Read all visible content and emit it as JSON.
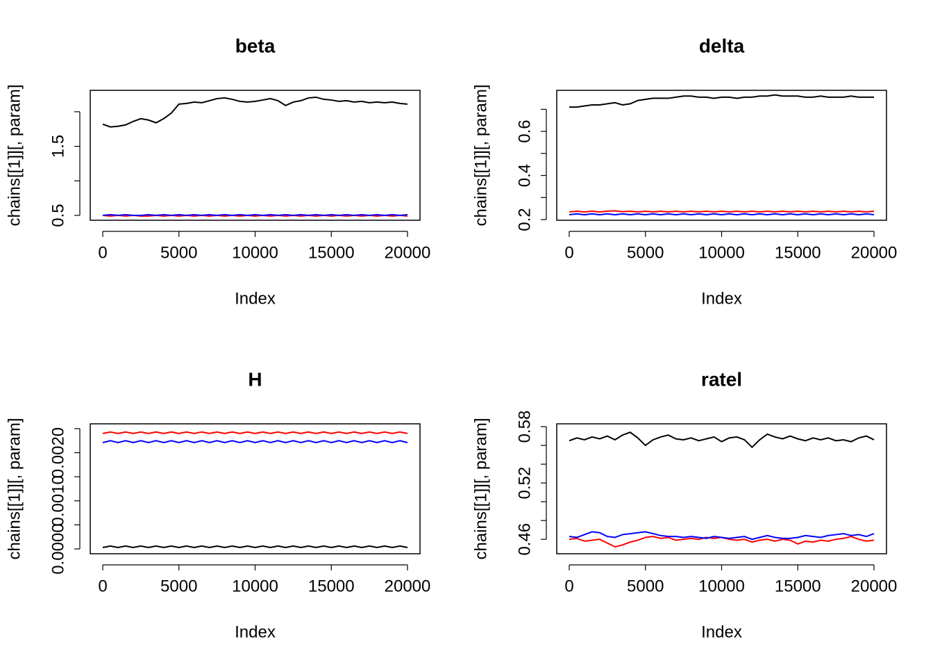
{
  "chart_data": [
    {
      "type": "line",
      "title": "beta",
      "xlabel": "Index",
      "ylabel": "chains[[1]][, param]",
      "x": [
        0,
        500,
        1000,
        1500,
        2000,
        2500,
        3000,
        3500,
        4000,
        4500,
        5000,
        5500,
        6000,
        6500,
        7000,
        7500,
        8000,
        8500,
        9000,
        9500,
        10000,
        10500,
        11000,
        11500,
        12000,
        12500,
        13000,
        13500,
        14000,
        14500,
        15000,
        15500,
        16000,
        16500,
        17000,
        17500,
        18000,
        18500,
        19000,
        19500,
        20000
      ],
      "series": [
        {
          "color": "#000000",
          "values": [
            1.82,
            1.78,
            1.79,
            1.81,
            1.86,
            1.9,
            1.88,
            1.84,
            1.9,
            1.98,
            2.11,
            2.12,
            2.14,
            2.13,
            2.16,
            2.19,
            2.2,
            2.18,
            2.15,
            2.14,
            2.15,
            2.17,
            2.19,
            2.16,
            2.09,
            2.14,
            2.16,
            2.2,
            2.21,
            2.18,
            2.17,
            2.15,
            2.16,
            2.14,
            2.15,
            2.13,
            2.14,
            2.13,
            2.14,
            2.12,
            2.11
          ]
        },
        {
          "color": "#ff0000",
          "values": [
            0.5,
            0.49,
            0.5,
            0.49,
            0.5,
            0.49,
            0.49,
            0.5,
            0.49,
            0.5,
            0.49,
            0.5,
            0.49,
            0.5,
            0.49,
            0.5,
            0.49,
            0.5,
            0.49,
            0.5,
            0.49,
            0.5,
            0.49,
            0.5,
            0.49,
            0.5,
            0.49,
            0.5,
            0.49,
            0.5,
            0.49,
            0.5,
            0.49,
            0.5,
            0.49,
            0.5,
            0.49,
            0.5,
            0.49,
            0.5,
            0.49
          ]
        },
        {
          "color": "#0000ff",
          "values": [
            0.5,
            0.51,
            0.5,
            0.51,
            0.5,
            0.5,
            0.51,
            0.5,
            0.51,
            0.5,
            0.51,
            0.5,
            0.51,
            0.5,
            0.51,
            0.5,
            0.51,
            0.5,
            0.51,
            0.5,
            0.51,
            0.5,
            0.51,
            0.5,
            0.51,
            0.5,
            0.51,
            0.5,
            0.51,
            0.5,
            0.51,
            0.5,
            0.51,
            0.5,
            0.51,
            0.5,
            0.51,
            0.5,
            0.51,
            0.5,
            0.51
          ]
        }
      ],
      "xlim": [
        -820,
        20820
      ],
      "ylim": [
        0.43,
        2.31
      ],
      "xticks": [
        0,
        5000,
        10000,
        15000,
        20000
      ],
      "yticks": [
        0.5,
        {
          "value": 1.0,
          "label": null
        },
        1.5,
        {
          "value": 2.0,
          "label": null
        }
      ]
    },
    {
      "type": "line",
      "title": "delta",
      "xlabel": "Index",
      "ylabel": "chains[[1]][, param]",
      "x": [
        0,
        500,
        1000,
        1500,
        2000,
        2500,
        3000,
        3500,
        4000,
        4500,
        5000,
        5500,
        6000,
        6500,
        7000,
        7500,
        8000,
        8500,
        9000,
        9500,
        10000,
        10500,
        11000,
        11500,
        12000,
        12500,
        13000,
        13500,
        14000,
        14500,
        15000,
        15500,
        16000,
        16500,
        17000,
        17500,
        18000,
        18500,
        19000,
        19500,
        20000
      ],
      "series": [
        {
          "color": "#000000",
          "values": [
            0.71,
            0.71,
            0.715,
            0.72,
            0.72,
            0.725,
            0.73,
            0.72,
            0.725,
            0.74,
            0.745,
            0.75,
            0.75,
            0.75,
            0.755,
            0.76,
            0.76,
            0.755,
            0.755,
            0.75,
            0.755,
            0.755,
            0.75,
            0.755,
            0.755,
            0.76,
            0.76,
            0.765,
            0.76,
            0.76,
            0.76,
            0.755,
            0.755,
            0.76,
            0.755,
            0.755,
            0.755,
            0.76,
            0.755,
            0.755,
            0.755
          ]
        },
        {
          "color": "#ff0000",
          "values": [
            0.235,
            0.238,
            0.235,
            0.238,
            0.235,
            0.238,
            0.24,
            0.236,
            0.238,
            0.235,
            0.238,
            0.235,
            0.238,
            0.235,
            0.238,
            0.235,
            0.238,
            0.235,
            0.238,
            0.235,
            0.238,
            0.235,
            0.238,
            0.235,
            0.238,
            0.235,
            0.238,
            0.235,
            0.238,
            0.235,
            0.238,
            0.235,
            0.238,
            0.235,
            0.238,
            0.235,
            0.238,
            0.235,
            0.238,
            0.235,
            0.238
          ]
        },
        {
          "color": "#0000ff",
          "values": [
            0.222,
            0.226,
            0.222,
            0.226,
            0.222,
            0.226,
            0.222,
            0.226,
            0.222,
            0.226,
            0.222,
            0.226,
            0.222,
            0.226,
            0.222,
            0.226,
            0.222,
            0.226,
            0.222,
            0.226,
            0.222,
            0.226,
            0.222,
            0.226,
            0.222,
            0.226,
            0.222,
            0.226,
            0.222,
            0.226,
            0.222,
            0.226,
            0.222,
            0.226,
            0.222,
            0.226,
            0.222,
            0.226,
            0.222,
            0.226,
            0.222
          ]
        }
      ],
      "xlim": [
        -820,
        20820
      ],
      "ylim": [
        0.197,
        0.786
      ],
      "xticks": [
        0,
        5000,
        10000,
        15000,
        20000
      ],
      "yticks": [
        0.2,
        {
          "value": 0.3,
          "label": null
        },
        0.4,
        {
          "value": 0.5,
          "label": null
        },
        0.6,
        {
          "value": 0.7,
          "label": null
        }
      ]
    },
    {
      "type": "line",
      "title": "H",
      "xlabel": "Index",
      "ylabel": "chains[[1]][, param]",
      "x": [
        0,
        500,
        1000,
        1500,
        2000,
        2500,
        3000,
        3500,
        4000,
        4500,
        5000,
        5500,
        6000,
        6500,
        7000,
        7500,
        8000,
        8500,
        9000,
        9500,
        10000,
        10500,
        11000,
        11500,
        12000,
        12500,
        13000,
        13500,
        14000,
        14500,
        15000,
        15500,
        16000,
        16500,
        17000,
        17500,
        18000,
        18500,
        19000,
        19500,
        20000
      ],
      "series": [
        {
          "color": "#000000",
          "values": [
            3e-05,
            6e-05,
            3e-05,
            6e-05,
            3e-05,
            6e-05,
            3e-05,
            6e-05,
            3e-05,
            6e-05,
            3e-05,
            6e-05,
            3e-05,
            6e-05,
            3e-05,
            6e-05,
            3e-05,
            6e-05,
            3e-05,
            6e-05,
            3e-05,
            6e-05,
            3e-05,
            6e-05,
            3e-05,
            6e-05,
            3e-05,
            6e-05,
            3e-05,
            6e-05,
            3e-05,
            6e-05,
            3e-05,
            6e-05,
            3e-05,
            6e-05,
            3e-05,
            6e-05,
            3e-05,
            6e-05,
            3e-05
          ]
        },
        {
          "color": "#ff0000",
          "values": [
            0.0024,
            0.00243,
            0.0024,
            0.00243,
            0.0024,
            0.00243,
            0.0024,
            0.00243,
            0.0024,
            0.00243,
            0.0024,
            0.00243,
            0.0024,
            0.00243,
            0.0024,
            0.00243,
            0.0024,
            0.00243,
            0.0024,
            0.00243,
            0.0024,
            0.00243,
            0.0024,
            0.00243,
            0.0024,
            0.00243,
            0.0024,
            0.00243,
            0.0024,
            0.00243,
            0.0024,
            0.00243,
            0.0024,
            0.00243,
            0.0024,
            0.00243,
            0.0024,
            0.00243,
            0.0024,
            0.00243,
            0.0024
          ]
        },
        {
          "color": "#0000ff",
          "values": [
            0.00221,
            0.00225,
            0.00221,
            0.00225,
            0.00221,
            0.00225,
            0.00221,
            0.00225,
            0.00221,
            0.00225,
            0.00221,
            0.00225,
            0.00221,
            0.00225,
            0.00221,
            0.00225,
            0.00221,
            0.00225,
            0.00221,
            0.00225,
            0.00221,
            0.00225,
            0.00221,
            0.00225,
            0.00221,
            0.00225,
            0.00221,
            0.00225,
            0.00221,
            0.00225,
            0.00221,
            0.00225,
            0.00221,
            0.00225,
            0.00221,
            0.00225,
            0.00221,
            0.00225,
            0.00221,
            0.00225,
            0.00221
          ]
        }
      ],
      "xlim": [
        -820,
        20820
      ],
      "ylim": [
        -0.0001,
        0.0026
      ],
      "xticks": [
        0,
        5000,
        10000,
        15000,
        20000
      ],
      "yticks": [
        {
          "value": 0,
          "label": "0.0000"
        },
        {
          "value": 0.0005,
          "label": null
        },
        {
          "value": 0.001,
          "label": "0.0010"
        },
        {
          "value": 0.0015,
          "label": null
        },
        {
          "value": 0.002,
          "label": "0.0020"
        },
        {
          "value": 0.0025,
          "label": null
        }
      ]
    },
    {
      "type": "line",
      "title": "ratel",
      "xlabel": "Index",
      "ylabel": "chains[[1]][, param]",
      "x": [
        0,
        500,
        1000,
        1500,
        2000,
        2500,
        3000,
        3500,
        4000,
        4500,
        5000,
        5500,
        6000,
        6500,
        7000,
        7500,
        8000,
        8500,
        9000,
        9500,
        10000,
        10500,
        11000,
        11500,
        12000,
        12500,
        13000,
        13500,
        14000,
        14500,
        15000,
        15500,
        16000,
        16500,
        17000,
        17500,
        18000,
        18500,
        19000,
        19500,
        20000
      ],
      "series": [
        {
          "color": "#000000",
          "values": [
            0.565,
            0.568,
            0.566,
            0.569,
            0.567,
            0.57,
            0.566,
            0.571,
            0.574,
            0.568,
            0.56,
            0.566,
            0.569,
            0.571,
            0.567,
            0.566,
            0.568,
            0.565,
            0.567,
            0.569,
            0.564,
            0.568,
            0.569,
            0.566,
            0.558,
            0.566,
            0.572,
            0.569,
            0.567,
            0.57,
            0.567,
            0.565,
            0.568,
            0.566,
            0.568,
            0.565,
            0.566,
            0.564,
            0.568,
            0.57,
            0.566
          ]
        },
        {
          "color": "#ff0000",
          "values": [
            0.46,
            0.461,
            0.458,
            0.459,
            0.46,
            0.456,
            0.452,
            0.454,
            0.457,
            0.459,
            0.462,
            0.463,
            0.461,
            0.462,
            0.459,
            0.46,
            0.461,
            0.46,
            0.462,
            0.461,
            0.462,
            0.46,
            0.459,
            0.46,
            0.457,
            0.459,
            0.46,
            0.458,
            0.46,
            0.459,
            0.455,
            0.458,
            0.457,
            0.459,
            0.458,
            0.46,
            0.461,
            0.463,
            0.46,
            0.458,
            0.459
          ]
        },
        {
          "color": "#0000ff",
          "values": [
            0.463,
            0.462,
            0.465,
            0.468,
            0.467,
            0.463,
            0.462,
            0.465,
            0.466,
            0.467,
            0.468,
            0.466,
            0.464,
            0.463,
            0.463,
            0.462,
            0.463,
            0.462,
            0.461,
            0.463,
            0.462,
            0.461,
            0.462,
            0.463,
            0.46,
            0.462,
            0.464,
            0.462,
            0.461,
            0.461,
            0.462,
            0.464,
            0.463,
            0.462,
            0.464,
            0.465,
            0.466,
            0.464,
            0.465,
            0.463,
            0.466
          ]
        }
      ],
      "xlim": [
        -820,
        20820
      ],
      "ylim": [
        0.4446,
        0.583
      ],
      "xticks": [
        0,
        5000,
        10000,
        15000,
        20000
      ],
      "yticks": [
        0.46,
        {
          "value": 0.48,
          "label": null
        },
        {
          "value": 0.5,
          "label": null
        },
        0.52,
        {
          "value": 0.54,
          "label": null
        },
        {
          "value": 0.56,
          "label": null
        },
        0.58
      ]
    }
  ]
}
